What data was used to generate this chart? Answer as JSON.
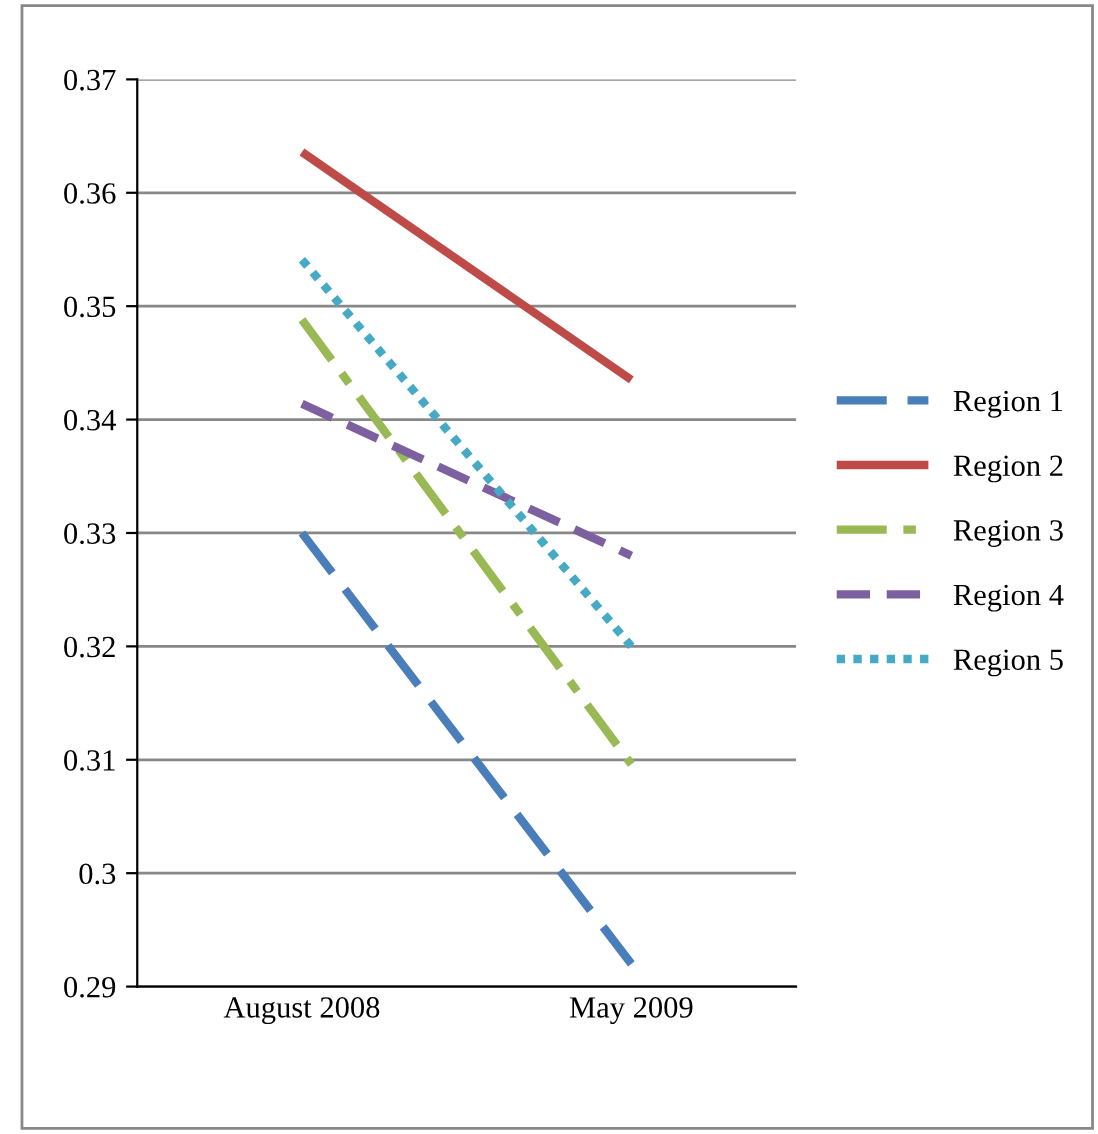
{
  "chart_data": {
    "type": "line",
    "categories": [
      "August 2008",
      "May 2009"
    ],
    "series": [
      {
        "name": "Region 1",
        "color": "#4a7ebb",
        "values": [
          0.33,
          0.292
        ],
        "line_style": "longdash"
      },
      {
        "name": "Region 2",
        "color": "#be4b48",
        "values": [
          0.3636,
          0.3435
        ],
        "line_style": "solid"
      },
      {
        "name": "Region 3",
        "color": "#98b954",
        "values": [
          0.3488,
          0.3096
        ],
        "line_style": "dashdot"
      },
      {
        "name": "Region 4",
        "color": "#7d60a0",
        "values": [
          0.3414,
          0.328
        ],
        "line_style": "dashed"
      },
      {
        "name": "Region 5",
        "color": "#46aac5",
        "values": [
          0.3541,
          0.32
        ],
        "line_style": "dotted"
      }
    ],
    "ylim": [
      0.29,
      0.37
    ],
    "yticks": [
      0.29,
      {
        "value": 0.3,
        "label": "0.3"
      },
      0.31,
      0.32,
      0.33,
      0.34,
      0.35,
      0.36,
      0.37
    ],
    "grid": "y",
    "legend": "right",
    "marker": "none"
  }
}
